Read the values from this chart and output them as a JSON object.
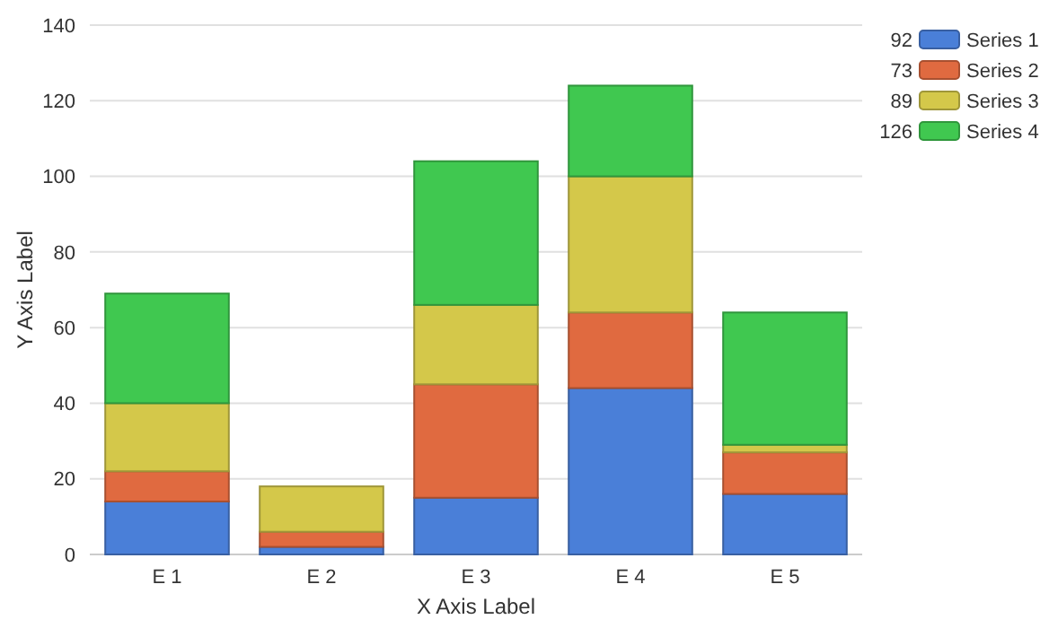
{
  "chart_data": {
    "type": "bar",
    "stacked": true,
    "categories": [
      "E 1",
      "E 2",
      "E 3",
      "E 4",
      "E 5"
    ],
    "xlabel": "X Axis Label",
    "ylabel": "Y Axis Label",
    "series": [
      {
        "name": "Series 1",
        "color": "#4a7fd8",
        "values": [
          14,
          2,
          15,
          44,
          16
        ]
      },
      {
        "name": "Series 2",
        "color": "#e06a40",
        "values": [
          8,
          4,
          30,
          20,
          11
        ]
      },
      {
        "name": "Series 3",
        "color": "#d4c84a",
        "values": [
          18,
          12,
          21,
          36,
          2
        ]
      },
      {
        "name": "Series 4",
        "color": "#40c850",
        "values": [
          29,
          0,
          38,
          24,
          35
        ]
      }
    ],
    "annotations": [
      "92",
      "73",
      "89",
      "126"
    ],
    "ylim": [
      0,
      140
    ],
    "yticks": [
      0,
      20,
      40,
      60,
      80,
      100,
      120,
      140
    ],
    "grid": "y",
    "legend": "top right"
  }
}
